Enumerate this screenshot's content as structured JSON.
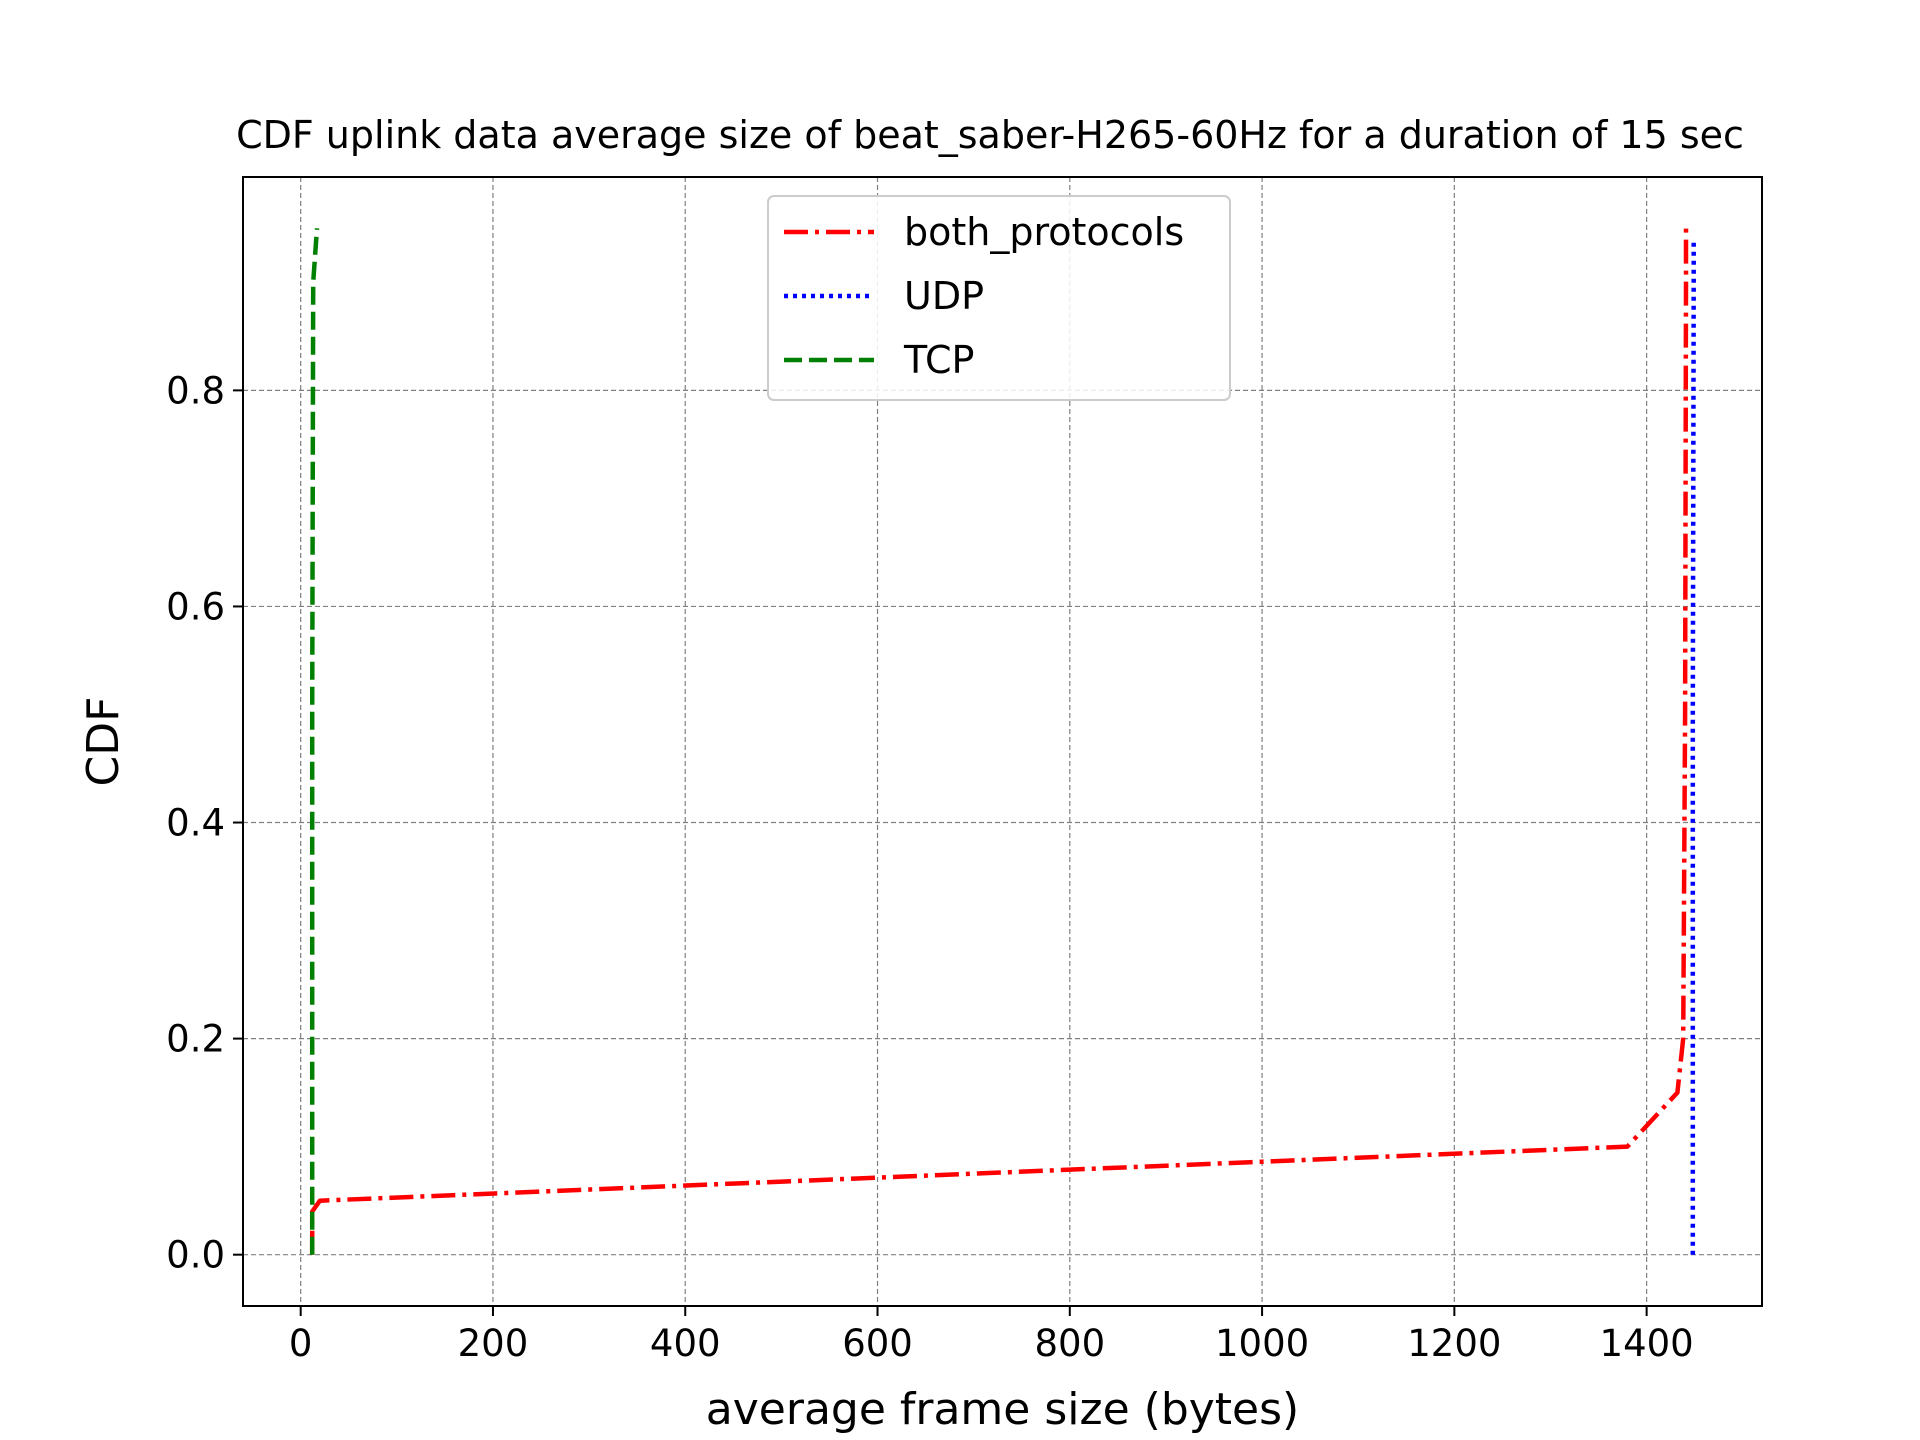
{
  "chart_data": {
    "type": "line",
    "title": "CDF uplink data average size of beat_saber-H265-60Hz for a duration of 15 sec",
    "xlabel": "average frame size (bytes)",
    "ylabel": "CDF",
    "xlim": [
      -60,
      1520
    ],
    "ylim": [
      -0.0475,
      0.9975
    ],
    "xticks": [
      0,
      200,
      400,
      600,
      800,
      1000,
      1200,
      1400
    ],
    "yticks": [
      0.0,
      0.2,
      0.4,
      0.6,
      0.8
    ],
    "xtick_labels": [
      "0",
      "200",
      "400",
      "600",
      "800",
      "1000",
      "1200",
      "1400"
    ],
    "ytick_labels": [
      "0.0",
      "0.2",
      "0.4",
      "0.6",
      "0.8"
    ],
    "grid": true,
    "legend_position": "top-center",
    "series": [
      {
        "name": "both_protocols",
        "color": "#ff0000",
        "style": "dashdot",
        "x": [
          12,
          12,
          20,
          1380,
          1432,
          1438,
          1440,
          1441,
          1441
        ],
        "y": [
          0.0,
          0.04,
          0.05,
          0.1,
          0.15,
          0.2,
          0.5,
          0.9,
          0.95
        ]
      },
      {
        "name": "UDP",
        "color": "#0000ff",
        "style": "dotted",
        "x": [
          1448,
          1448,
          1449,
          1449
        ],
        "y": [
          0.0,
          0.5,
          0.9,
          0.94
        ]
      },
      {
        "name": "TCP",
        "color": "#008000",
        "style": "dashed",
        "x": [
          12,
          12,
          12,
          13,
          17
        ],
        "y": [
          0.0,
          0.05,
          0.5,
          0.9,
          0.95
        ]
      }
    ]
  }
}
